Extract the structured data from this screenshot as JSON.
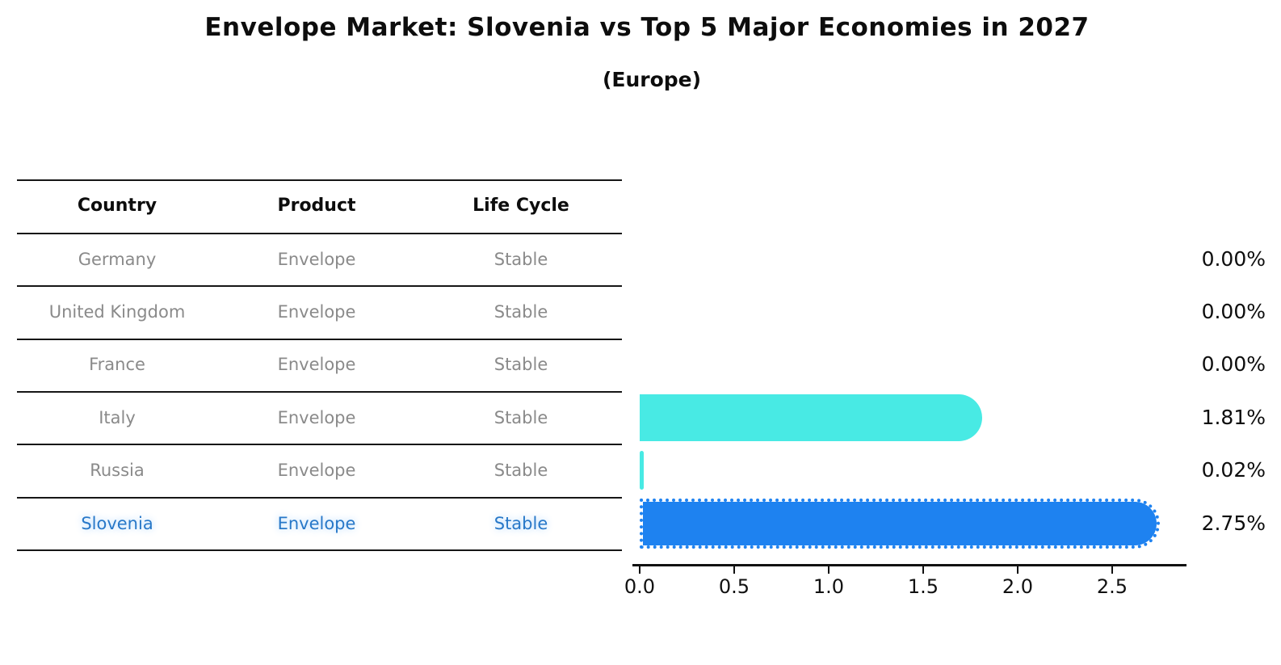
{
  "chart_data": {
    "type": "bar",
    "orientation": "horizontal",
    "title": "Envelope Market: Slovenia vs Top 5 Major Economies in 2027",
    "subtitle": "(Europe)",
    "categories": [
      "Germany",
      "United Kingdom",
      "France",
      "Italy",
      "Russia",
      "Slovenia"
    ],
    "values": [
      0.0,
      0.0,
      0.0,
      1.81,
      0.02,
      2.75
    ],
    "value_labels": [
      "0.00%",
      "0.00%",
      "0.00%",
      "1.81%",
      "0.02%",
      "2.75%"
    ],
    "x_ticks": [
      0.0,
      0.5,
      1.0,
      1.5,
      2.0,
      2.5
    ],
    "x_tick_labels": [
      "0.0",
      "0.5",
      "1.0",
      "1.5",
      "2.0",
      "2.5"
    ],
    "xlim": [
      0,
      2.9
    ],
    "grid": false,
    "legend": "none",
    "bar_color": "#48EAE4",
    "highlight_bar_color": "#1E82F0",
    "highlight_index": 5,
    "highlight_text_color": "#2878C8"
  },
  "table": {
    "headers": [
      "Country",
      "Product",
      "Life Cycle"
    ],
    "rows": [
      {
        "country": "Germany",
        "product": "Envelope",
        "life_cycle": "Stable"
      },
      {
        "country": "United Kingdom",
        "product": "Envelope",
        "life_cycle": "Stable"
      },
      {
        "country": "France",
        "product": "Envelope",
        "life_cycle": "Stable"
      },
      {
        "country": "Italy",
        "product": "Envelope",
        "life_cycle": "Stable"
      },
      {
        "country": "Russia",
        "product": "Envelope",
        "life_cycle": "Stable"
      },
      {
        "country": "Slovenia",
        "product": "Envelope",
        "life_cycle": "Stable"
      }
    ]
  }
}
